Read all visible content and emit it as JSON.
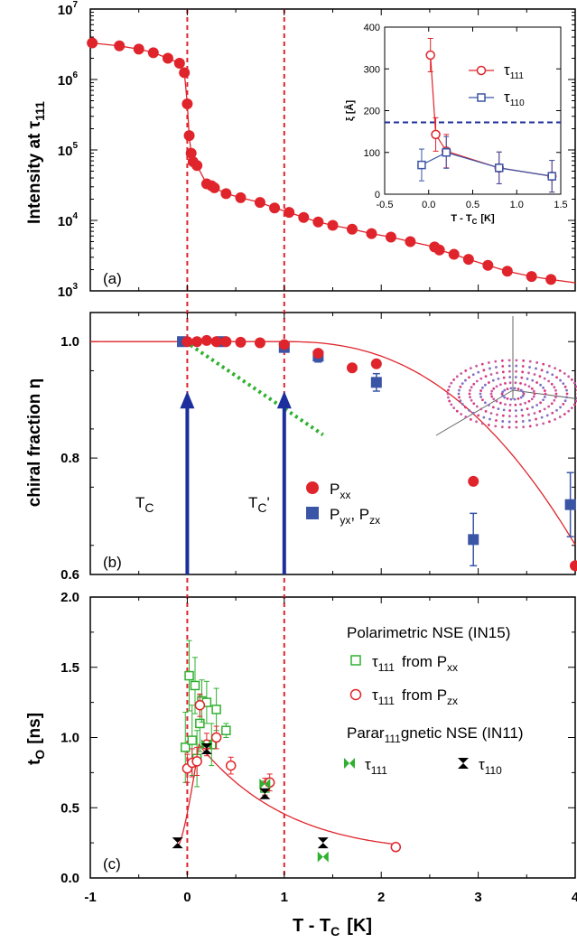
{
  "colors": {
    "red": "#e0242b",
    "blue": "#3b55a6",
    "green": "#2fb02f",
    "dark_blue": "#1c2f9c",
    "axis": "#000000"
  },
  "x_axis": {
    "label_main": "T - T",
    "label_sub": "C",
    "label_unit": "[K]",
    "tick_labels": [
      "-1",
      "0",
      "1",
      "2",
      "3",
      "4"
    ]
  },
  "chart_data": [
    {
      "panel": "(a)",
      "type": "line",
      "ylabel_main": "Intensity at τ",
      "ylabel_sub": "111",
      "yscale": "log",
      "xlim": [
        -1,
        4
      ],
      "ylim_exp": [
        3,
        7
      ],
      "ytick_exponents": [
        "3",
        "4",
        "5",
        "6",
        "7"
      ],
      "series": [
        {
          "marker": "filled-circle",
          "x": [
            -0.98,
            -0.7,
            -0.5,
            -0.35,
            -0.2,
            -0.08,
            -0.03,
            0.0,
            0.02,
            0.04,
            0.06,
            0.1,
            0.2,
            0.25,
            0.28,
            0.4,
            0.55,
            0.75,
            0.9,
            1.05,
            1.2,
            1.35,
            1.5,
            1.7,
            1.9,
            2.1,
            2.3,
            2.55,
            2.6,
            2.75,
            2.9,
            3.1,
            3.3,
            3.55,
            3.75
          ],
          "y": [
            3300000,
            3000000,
            2700000,
            2400000,
            2000000,
            1700000,
            1250000,
            450000,
            160000,
            90000,
            68000,
            60000,
            33000,
            31000,
            29000,
            24000,
            21000,
            18000,
            15000,
            13000,
            11000,
            9500,
            8500,
            7500,
            6500,
            5800,
            5000,
            4200,
            3800,
            3300,
            2800,
            2300,
            1900,
            1600,
            1450
          ]
        }
      ],
      "inset": {
        "type": "scatter",
        "ylabel": "ξ [Å]",
        "xlabel_main": "T - T",
        "xlabel_sub": "C",
        "xlabel_unit": "[K]",
        "xlim": [
          -0.5,
          1.5
        ],
        "ylim": [
          0,
          400
        ],
        "x_tick_labels": [
          "-0.5",
          "0.0",
          "0.5",
          "1.0",
          "1.5"
        ],
        "y_tick_labels": [
          "0",
          "100",
          "200",
          "300",
          "400"
        ],
        "reference_line_y": 172,
        "series": [
          {
            "name": "τ",
            "name_sub": "111",
            "marker": "open-circle",
            "color": "#e0242b",
            "x": [
              0.02,
              0.08,
              0.2,
              0.8,
              1.4
            ],
            "y": [
              333,
              143,
              103,
              63,
              43
            ],
            "err": [
              40,
              40,
              40,
              38,
              38
            ]
          },
          {
            "name": "τ",
            "name_sub": "110",
            "marker": "open-square",
            "color": "#3b55a6",
            "x": [
              -0.08,
              0.2,
              0.8,
              1.4
            ],
            "y": [
              70,
              100,
              63,
              43
            ],
            "err": [
              38,
              38,
              38,
              38
            ]
          }
        ]
      }
    },
    {
      "panel": "(b)",
      "type": "line",
      "ylabel": "chiral fraction η",
      "xlim": [
        -1,
        4
      ],
      "ylim": [
        0.6,
        1.05
      ],
      "ytick_values": [
        0.6,
        0.8,
        1.0
      ],
      "y_tick_labels": [
        "0.6",
        "0.8",
        "1.0"
      ],
      "annotations": [
        "T",
        "C",
        "T",
        "C",
        "'"
      ],
      "series": [
        {
          "name": "P",
          "name_sub": "xx",
          "marker": "filled-circle",
          "color": "#e0242b",
          "x": [
            0.0,
            0.1,
            0.2,
            0.3,
            0.4,
            0.55,
            0.75,
            1.0,
            1.35,
            1.7,
            1.95,
            2.95,
            4.0
          ],
          "y": [
            1.0,
            1.0,
            1.002,
            1.0,
            1.0,
            0.999,
            0.998,
            0.995,
            0.98,
            0.955,
            0.962,
            0.76,
            0.615
          ]
        },
        {
          "name": "P",
          "name_sub": "yx",
          "name2": "P",
          "name2_sub": "zx",
          "marker": "filled-square",
          "color": "#3b55a6",
          "x": [
            -0.05,
            0.35,
            1.0,
            1.35,
            1.95,
            2.95,
            3.95
          ],
          "y": [
            1.0,
            1.0,
            0.99,
            0.975,
            0.93,
            0.66,
            0.72
          ],
          "err": [
            0,
            0,
            0,
            0.01,
            0.015,
            0.045,
            0.055
          ]
        }
      ]
    },
    {
      "panel": "(c)",
      "type": "scatter",
      "ylabel_main": "t",
      "ylabel_sub": "O",
      "ylabel_unit": "[ns]",
      "xlim": [
        -1,
        4
      ],
      "ylim": [
        0,
        2.0
      ],
      "ytick_values": [
        0,
        0.5,
        1.0,
        1.5,
        2.0
      ],
      "y_tick_labels": [
        "0.0",
        "0.5",
        "1.0",
        "1.5",
        "2.0"
      ],
      "legend_title_1": "Polarimetric NSE (IN15)",
      "legend_title_2": "Parar",
      "legend_title_2_sub": "111",
      "legend_title_2_rest": "gnetic NSE (IN11)",
      "series": [
        {
          "name": "τ",
          "name_sub": "111",
          "name_rest": "from P",
          "name_rest_sub": "xx",
          "marker": "open-square",
          "color": "#2fb02f",
          "x": [
            -0.02,
            0.02,
            0.05,
            0.08,
            0.1,
            0.13,
            0.15,
            0.2,
            0.25,
            0.3,
            0.4,
            0.8
          ],
          "y": [
            0.93,
            1.44,
            0.98,
            1.37,
            0.85,
            1.1,
            1.26,
            1.25,
            0.95,
            1.2,
            1.05,
            0.64
          ],
          "err": [
            0.25,
            0.25,
            0.25,
            0.2,
            0.2,
            0.2,
            0.15,
            0.15,
            0.15,
            0.15,
            0.05,
            0.05
          ]
        },
        {
          "name": "τ",
          "name_sub": "111",
          "name_rest": "from P",
          "name_rest_sub": "zx",
          "marker": "open-circle",
          "color": "#e0242b",
          "x": [
            0.0,
            0.05,
            0.1,
            0.13,
            0.2,
            0.3,
            0.45,
            0.8,
            0.85,
            2.15
          ],
          "y": [
            0.78,
            0.82,
            0.83,
            1.23,
            0.95,
            1.0,
            0.8,
            0.65,
            0.68,
            0.22
          ],
          "err": [
            0.1,
            0.1,
            0.1,
            0.08,
            0.08,
            0.08,
            0.06,
            0.06,
            0.06,
            0.02
          ]
        },
        {
          "name": "τ",
          "name_sub": "111",
          "marker": "green-bowtie",
          "color": "#2fb02f",
          "x": [
            0.2,
            0.8,
            1.4
          ],
          "y": [
            0.95,
            0.67,
            0.15
          ]
        },
        {
          "name": "τ",
          "name_sub": "110",
          "marker": "black-hourglass",
          "color": "#000000",
          "x": [
            -0.1,
            0.2,
            0.8,
            1.4
          ],
          "y": [
            0.25,
            0.92,
            0.6,
            0.25
          ]
        }
      ]
    }
  ]
}
